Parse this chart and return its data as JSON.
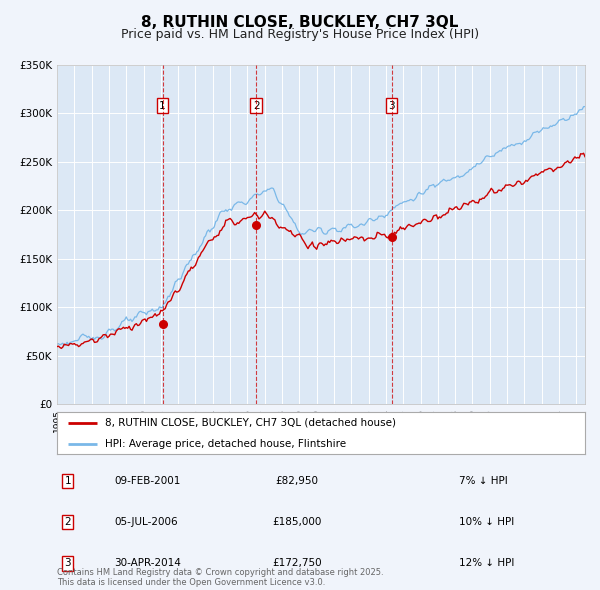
{
  "title": "8, RUTHIN CLOSE, BUCKLEY, CH7 3QL",
  "subtitle": "Price paid vs. HM Land Registry's House Price Index (HPI)",
  "title_fontsize": 11,
  "subtitle_fontsize": 9,
  "legend_label_red": "8, RUTHIN CLOSE, BUCKLEY, CH7 3QL (detached house)",
  "legend_label_blue": "HPI: Average price, detached house, Flintshire",
  "ylim": [
    0,
    350000
  ],
  "yticks": [
    0,
    50000,
    100000,
    150000,
    200000,
    250000,
    300000,
    350000
  ],
  "ytick_labels": [
    "£0",
    "£50K",
    "£100K",
    "£150K",
    "£200K",
    "£250K",
    "£300K",
    "£350K"
  ],
  "background_color": "#f0f4fb",
  "plot_bg_color": "#dce8f5",
  "grid_color": "#ffffff",
  "red_line_color": "#cc0000",
  "blue_line_color": "#7ab8e8",
  "vline_color": "#cc0000",
  "transactions": [
    {
      "label": "1",
      "date_str": "09-FEB-2001",
      "price": 82950,
      "pct": "7%",
      "x_year": 2001.1,
      "marker_y": 82950
    },
    {
      "label": "2",
      "date_str": "05-JUL-2006",
      "price": 185000,
      "pct": "10%",
      "x_year": 2006.5,
      "marker_y": 185000
    },
    {
      "label": "3",
      "date_str": "30-APR-2014",
      "price": 172750,
      "pct": "12%",
      "x_year": 2014.33,
      "marker_y": 172750
    }
  ],
  "footer_text": "Contains HM Land Registry data © Crown copyright and database right 2025.\nThis data is licensed under the Open Government Licence v3.0.",
  "xlim_start": 1995.0,
  "xlim_end": 2025.5
}
